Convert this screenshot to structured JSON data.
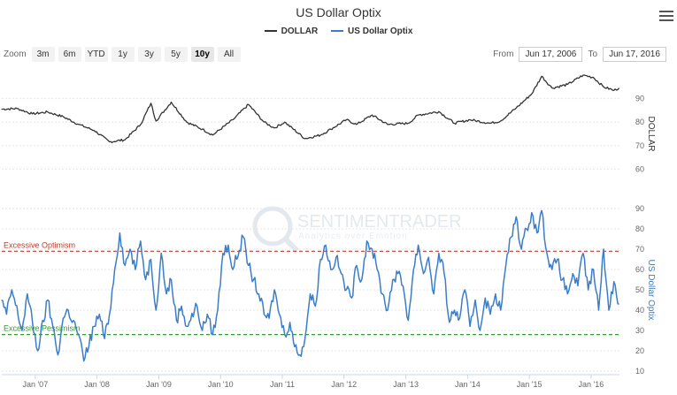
{
  "title": "US Dollar Optix",
  "legend": [
    {
      "name": "DOLLAR",
      "color": "#333333"
    },
    {
      "name": "US Dollar Optix",
      "color": "#3a7dc9"
    }
  ],
  "zoom": {
    "label": "Zoom",
    "buttons": [
      "3m",
      "6m",
      "YTD",
      "1y",
      "3y",
      "5y",
      "10y",
      "All"
    ],
    "active": "10y"
  },
  "range": {
    "from_label": "From",
    "from_value": "Jun 17, 2006",
    "to_label": "To",
    "to_value": "Jun 17, 2016"
  },
  "watermark": {
    "main": "SENTIMENTRADER",
    "sub": "Analytics over Emotion"
  },
  "chart_data": {
    "type": "line",
    "x_tick_labels": [
      "Jan '07",
      "Jan '08",
      "Jan '09",
      "Jan '10",
      "Jan '11",
      "Jan '12",
      "Jan '13",
      "Jan '14",
      "Jan '15",
      "Jan '16"
    ],
    "x_range": [
      "2006-06-17",
      "2016-06-17"
    ],
    "panels": [
      {
        "name": "DOLLAR",
        "ylabel": "DOLLAR",
        "ylim": [
          50,
          100
        ],
        "y_ticks": [
          60,
          70,
          80,
          90
        ],
        "color": "#333333",
        "points": [
          [
            "2006-06",
            85.5
          ],
          [
            "2006-09",
            85.8
          ],
          [
            "2006-12",
            83.5
          ],
          [
            "2007-03",
            84.3
          ],
          [
            "2007-06",
            82.3
          ],
          [
            "2007-09",
            79.0
          ],
          [
            "2007-12",
            76.5
          ],
          [
            "2008-03",
            71.6
          ],
          [
            "2008-06",
            72.5
          ],
          [
            "2008-09",
            79.0
          ],
          [
            "2008-11",
            88.0
          ],
          [
            "2008-12",
            80.5
          ],
          [
            "2009-03",
            88.5
          ],
          [
            "2009-06",
            80.0
          ],
          [
            "2009-09",
            77.0
          ],
          [
            "2009-11",
            74.5
          ],
          [
            "2010-03",
            81.0
          ],
          [
            "2010-06",
            87.5
          ],
          [
            "2010-09",
            80.0
          ],
          [
            "2010-11",
            77.5
          ],
          [
            "2011-01",
            80.0
          ],
          [
            "2011-05",
            73.0
          ],
          [
            "2011-08",
            74.5
          ],
          [
            "2011-10",
            77.0
          ],
          [
            "2012-01",
            81.0
          ],
          [
            "2012-03",
            79.0
          ],
          [
            "2012-06",
            83.0
          ],
          [
            "2012-09",
            79.0
          ],
          [
            "2013-01",
            79.5
          ],
          [
            "2013-03",
            83.0
          ],
          [
            "2013-07",
            84.5
          ],
          [
            "2013-10",
            79.5
          ],
          [
            "2014-01",
            81.0
          ],
          [
            "2014-05",
            79.5
          ],
          [
            "2014-07",
            80.5
          ],
          [
            "2014-10",
            86.0
          ],
          [
            "2015-01",
            92.0
          ],
          [
            "2015-03",
            99.5
          ],
          [
            "2015-05",
            94.5
          ],
          [
            "2015-08",
            96.0
          ],
          [
            "2015-11",
            100.0
          ],
          [
            "2016-01",
            99.0
          ],
          [
            "2016-03",
            95.0
          ],
          [
            "2016-05",
            93.5
          ],
          [
            "2016-06",
            94.5
          ]
        ]
      },
      {
        "name": "US Dollar Optix",
        "ylabel": "US Dollar Optix",
        "ylim": [
          10,
          90
        ],
        "y_ticks": [
          10,
          20,
          30,
          40,
          50,
          60,
          70,
          80,
          90
        ],
        "color": "#3a7dc9",
        "points": [
          [
            "2006-06",
            45
          ],
          [
            "2006-07",
            38
          ],
          [
            "2006-08",
            50
          ],
          [
            "2006-10",
            30
          ],
          [
            "2006-11",
            48
          ],
          [
            "2007-01",
            20
          ],
          [
            "2007-03",
            45
          ],
          [
            "2007-04",
            32
          ],
          [
            "2007-05",
            18
          ],
          [
            "2007-06",
            36
          ],
          [
            "2007-07",
            40
          ],
          [
            "2007-09",
            28
          ],
          [
            "2007-10",
            15
          ],
          [
            "2007-12",
            32
          ],
          [
            "2008-01",
            38
          ],
          [
            "2008-02",
            26
          ],
          [
            "2008-03",
            38
          ],
          [
            "2008-04",
            60
          ],
          [
            "2008-05",
            78
          ],
          [
            "2008-06",
            62
          ],
          [
            "2008-07",
            70
          ],
          [
            "2008-08",
            60
          ],
          [
            "2008-09",
            74
          ],
          [
            "2008-10",
            55
          ],
          [
            "2008-11",
            65
          ],
          [
            "2008-12",
            40
          ],
          [
            "2009-01",
            68
          ],
          [
            "2009-02",
            48
          ],
          [
            "2009-03",
            55
          ],
          [
            "2009-04",
            35
          ],
          [
            "2009-05",
            42
          ],
          [
            "2009-06",
            32
          ],
          [
            "2009-08",
            42
          ],
          [
            "2009-09",
            30
          ],
          [
            "2009-10",
            38
          ],
          [
            "2009-11",
            28
          ],
          [
            "2009-12",
            40
          ],
          [
            "2010-01",
            68
          ],
          [
            "2010-02",
            72
          ],
          [
            "2010-03",
            60
          ],
          [
            "2010-05",
            76
          ],
          [
            "2010-06",
            62
          ],
          [
            "2010-07",
            55
          ],
          [
            "2010-08",
            48
          ],
          [
            "2010-09",
            38
          ],
          [
            "2010-10",
            36
          ],
          [
            "2010-11",
            50
          ],
          [
            "2010-12",
            38
          ],
          [
            "2011-01",
            28
          ],
          [
            "2011-02",
            34
          ],
          [
            "2011-03",
            22
          ],
          [
            "2011-04",
            18
          ],
          [
            "2011-05",
            26
          ],
          [
            "2011-06",
            48
          ],
          [
            "2011-07",
            42
          ],
          [
            "2011-08",
            65
          ],
          [
            "2011-09",
            72
          ],
          [
            "2011-10",
            60
          ],
          [
            "2011-11",
            66
          ],
          [
            "2011-12",
            58
          ],
          [
            "2012-01",
            50
          ],
          [
            "2012-02",
            46
          ],
          [
            "2012-03",
            62
          ],
          [
            "2012-04",
            55
          ],
          [
            "2012-05",
            74
          ],
          [
            "2012-06",
            70
          ],
          [
            "2012-07",
            60
          ],
          [
            "2012-08",
            48
          ],
          [
            "2012-09",
            40
          ],
          [
            "2012-10",
            55
          ],
          [
            "2012-11",
            58
          ],
          [
            "2012-12",
            52
          ],
          [
            "2013-01",
            35
          ],
          [
            "2013-02",
            60
          ],
          [
            "2013-03",
            72
          ],
          [
            "2013-04",
            58
          ],
          [
            "2013-05",
            66
          ],
          [
            "2013-06",
            48
          ],
          [
            "2013-07",
            68
          ],
          [
            "2013-08",
            58
          ],
          [
            "2013-09",
            34
          ],
          [
            "2013-10",
            40
          ],
          [
            "2013-11",
            36
          ],
          [
            "2013-12",
            50
          ],
          [
            "2014-01",
            32
          ],
          [
            "2014-02",
            45
          ],
          [
            "2014-03",
            30
          ],
          [
            "2014-04",
            46
          ],
          [
            "2014-05",
            38
          ],
          [
            "2014-06",
            48
          ],
          [
            "2014-07",
            40
          ],
          [
            "2014-08",
            62
          ],
          [
            "2014-09",
            76
          ],
          [
            "2014-10",
            86
          ],
          [
            "2014-11",
            70
          ],
          [
            "2014-12",
            80
          ],
          [
            "2015-01",
            88
          ],
          [
            "2015-02",
            78
          ],
          [
            "2015-03",
            89
          ],
          [
            "2015-04",
            68
          ],
          [
            "2015-05",
            60
          ],
          [
            "2015-06",
            65
          ],
          [
            "2015-07",
            55
          ],
          [
            "2015-08",
            48
          ],
          [
            "2015-09",
            58
          ],
          [
            "2015-10",
            52
          ],
          [
            "2015-11",
            68
          ],
          [
            "2015-12",
            50
          ],
          [
            "2016-01",
            60
          ],
          [
            "2016-02",
            40
          ],
          [
            "2016-03",
            70
          ],
          [
            "2016-04",
            40
          ],
          [
            "2016-05",
            54
          ],
          [
            "2016-06",
            43
          ]
        ],
        "bands": [
          {
            "label": "Excessive Optimism",
            "value": 69,
            "color": "#c0392b"
          },
          {
            "label": "Excessive Pessimism",
            "value": 28,
            "color": "#2e9e2e"
          }
        ]
      }
    ]
  }
}
